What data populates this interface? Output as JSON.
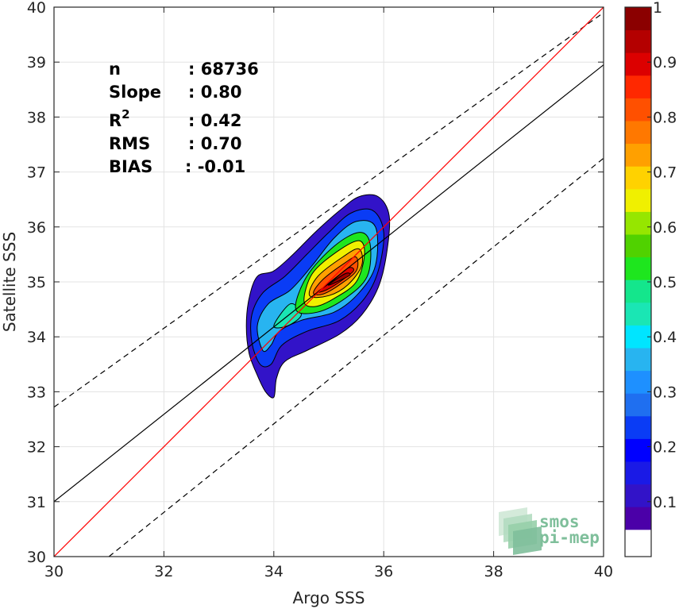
{
  "chart_data": {
    "type": "contour-scatter-density",
    "xlabel": "Argo SSS",
    "ylabel": "Satellite SSS",
    "xlim": [
      30,
      40
    ],
    "ylim": [
      30,
      40
    ],
    "x_ticks": [
      "30",
      "32",
      "34",
      "36",
      "38",
      "40"
    ],
    "y_ticks": [
      "30",
      "31",
      "32",
      "33",
      "34",
      "35",
      "36",
      "37",
      "38",
      "39",
      "40"
    ],
    "grid": true,
    "stats": [
      {
        "label": "n",
        "value": ": 68736"
      },
      {
        "label": "Slope",
        "value": ": 0.80"
      },
      {
        "label": "R",
        "label_sup": "2",
        "value": ": 0.42"
      },
      {
        "label": "RMS",
        "value": ": 0.70"
      },
      {
        "label": "BIAS",
        "value": ": -0.01"
      }
    ],
    "lines": {
      "one_to_one": {
        "color": "#ff0000",
        "points": [
          [
            30,
            30
          ],
          [
            40,
            40
          ]
        ]
      },
      "regression": {
        "color": "#000000",
        "points": [
          [
            30,
            31.0
          ],
          [
            40,
            38.95
          ]
        ]
      },
      "upper_bound": {
        "color": "#000000",
        "style": "dashed",
        "points": [
          [
            30,
            32.72
          ],
          [
            40,
            39.9
          ]
        ]
      },
      "lower_bound": {
        "color": "#000000",
        "style": "dashed",
        "points": [
          [
            31.0,
            30
          ],
          [
            40,
            37.25
          ]
        ]
      }
    },
    "density_levels": [
      0.05,
      0.1,
      0.15,
      0.2,
      0.25,
      0.3,
      0.35,
      0.4,
      0.45,
      0.5,
      0.55,
      0.6,
      0.65,
      0.7,
      0.75,
      0.8,
      0.85,
      0.9,
      0.95,
      1
    ],
    "colorbar": {
      "range": [
        0,
        1
      ],
      "ticks": [
        "0.1",
        "0.2",
        "0.3",
        "0.4",
        "0.5",
        "0.6",
        "0.7",
        "0.8",
        "0.9",
        "1"
      ],
      "colors": [
        "#4b00a8",
        "#3213c8",
        "#1a1ae6",
        "#0000ff",
        "#0a3cf5",
        "#1f6ff0",
        "#1e90ff",
        "#28b4f0",
        "#00e5ff",
        "#1ae6b4",
        "#14e68c",
        "#1ee61e",
        "#50d200",
        "#96e600",
        "#f0f000",
        "#ffd200",
        "#ffa000",
        "#ff7800",
        "#ff5000",
        "#ff2800",
        "#dc0000",
        "#b40000",
        "#8b0000"
      ]
    },
    "density_contours": [
      {
        "level": 0.05,
        "color": "#3213c8",
        "points": [
          [
            34.0,
            32.9
          ],
          [
            33.85,
            33.0
          ],
          [
            33.7,
            33.3
          ],
          [
            33.55,
            33.7
          ],
          [
            33.5,
            34.2
          ],
          [
            33.55,
            34.7
          ],
          [
            33.7,
            35.1
          ],
          [
            34.0,
            35.2
          ],
          [
            34.35,
            35.5
          ],
          [
            34.75,
            35.9
          ],
          [
            35.2,
            36.3
          ],
          [
            35.55,
            36.55
          ],
          [
            35.9,
            36.55
          ],
          [
            36.1,
            36.2
          ],
          [
            36.05,
            35.5
          ],
          [
            35.9,
            34.9
          ],
          [
            35.6,
            34.4
          ],
          [
            35.2,
            34.05
          ],
          [
            34.6,
            33.75
          ],
          [
            34.2,
            33.55
          ],
          [
            34.05,
            33.25
          ]
        ]
      },
      {
        "level": 0.15,
        "color": "#0a3cf5",
        "points": [
          [
            33.75,
            33.5
          ],
          [
            33.6,
            33.9
          ],
          [
            33.6,
            34.4
          ],
          [
            33.8,
            34.8
          ],
          [
            34.2,
            35.1
          ],
          [
            34.6,
            35.5
          ],
          [
            35.0,
            35.9
          ],
          [
            35.4,
            36.25
          ],
          [
            35.8,
            36.3
          ],
          [
            36.0,
            35.9
          ],
          [
            35.9,
            35.2
          ],
          [
            35.65,
            34.7
          ],
          [
            35.2,
            34.3
          ],
          [
            34.6,
            34.1
          ],
          [
            34.15,
            33.85
          ],
          [
            33.95,
            33.5
          ]
        ]
      },
      {
        "level": 0.3,
        "color": "#28b4f0",
        "points": [
          [
            33.8,
            33.75
          ],
          [
            33.7,
            34.2
          ],
          [
            33.9,
            34.6
          ],
          [
            34.3,
            34.85
          ],
          [
            34.7,
            35.3
          ],
          [
            35.1,
            35.8
          ],
          [
            35.5,
            36.1
          ],
          [
            35.85,
            36.0
          ],
          [
            35.85,
            35.3
          ],
          [
            35.55,
            34.8
          ],
          [
            35.1,
            34.45
          ],
          [
            34.5,
            34.3
          ],
          [
            34.1,
            34.1
          ],
          [
            33.95,
            33.85
          ]
        ]
      },
      {
        "level": 0.45,
        "color": "#1ae6b4",
        "points": [
          [
            34.0,
            34.2
          ],
          [
            34.3,
            34.6
          ],
          [
            34.5,
            34.4
          ],
          [
            34.25,
            34.2
          ]
        ]
      },
      {
        "level": 0.5,
        "color": "#1ee61e",
        "points": [
          [
            34.4,
            34.5
          ],
          [
            34.6,
            35.1
          ],
          [
            35.1,
            35.65
          ],
          [
            35.55,
            35.9
          ],
          [
            35.75,
            35.7
          ],
          [
            35.7,
            35.1
          ],
          [
            35.3,
            34.7
          ],
          [
            34.8,
            34.45
          ]
        ]
      },
      {
        "level": 0.65,
        "color": "#f0f000",
        "points": [
          [
            34.55,
            34.65
          ],
          [
            34.7,
            35.15
          ],
          [
            35.15,
            35.55
          ],
          [
            35.55,
            35.75
          ],
          [
            35.65,
            35.5
          ],
          [
            35.5,
            35.0
          ],
          [
            35.1,
            34.7
          ],
          [
            34.75,
            34.55
          ]
        ]
      },
      {
        "level": 0.75,
        "color": "#ffa000",
        "points": [
          [
            34.65,
            34.75
          ],
          [
            34.8,
            35.1
          ],
          [
            35.25,
            35.45
          ],
          [
            35.55,
            35.6
          ],
          [
            35.6,
            35.3
          ],
          [
            35.35,
            34.95
          ],
          [
            35.0,
            34.75
          ]
        ]
      },
      {
        "level": 0.85,
        "color": "#ff5000",
        "points": [
          [
            34.72,
            34.8
          ],
          [
            34.9,
            35.05
          ],
          [
            35.3,
            35.35
          ],
          [
            35.5,
            35.45
          ],
          [
            35.5,
            35.2
          ],
          [
            35.2,
            34.95
          ],
          [
            34.9,
            34.78
          ]
        ]
      },
      {
        "level": 0.95,
        "color": "#dc0000",
        "points": [
          [
            34.8,
            34.82
          ],
          [
            35.05,
            35.0
          ],
          [
            35.35,
            35.25
          ],
          [
            35.45,
            35.2
          ],
          [
            35.2,
            35.0
          ],
          [
            34.95,
            34.85
          ]
        ]
      },
      {
        "level": 1,
        "color": "#a00000",
        "points": [
          [
            35.0,
            34.95
          ],
          [
            35.3,
            35.15
          ],
          [
            35.38,
            35.12
          ],
          [
            35.1,
            34.98
          ]
        ]
      }
    ],
    "logo": {
      "line1": "smos",
      "line2": "pi-mep"
    }
  }
}
